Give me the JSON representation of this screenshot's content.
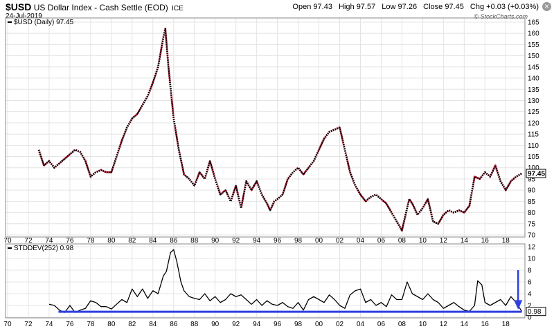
{
  "header": {
    "symbol": "$USD",
    "name": "US Dollar Index - Cash Settle (EOD)",
    "exchange": "ICE",
    "date": "24-Jul-2019",
    "credit": "© StockCharts.com",
    "quote": [
      {
        "label": "Open",
        "value": "97.43"
      },
      {
        "label": "High",
        "value": "97.57"
      },
      {
        "label": "Low",
        "value": "97.26"
      },
      {
        "label": "Close",
        "value": "97.45"
      },
      {
        "label": "Chg",
        "value": "+0.03 (+0.03%)"
      }
    ]
  },
  "chart_data": [
    {
      "type": "line",
      "legend": "$USD (Daily) 97.45",
      "last_value_label": "97.45",
      "ylim": [
        70,
        165
      ],
      "y_ticks": [
        70,
        75,
        80,
        85,
        90,
        95,
        100,
        105,
        110,
        115,
        120,
        125,
        130,
        135,
        140,
        145,
        150,
        155,
        160,
        165
      ],
      "x_ticks": [
        "70",
        "72",
        "74",
        "76",
        "78",
        "80",
        "82",
        "84",
        "86",
        "88",
        "90",
        "92",
        "94",
        "96",
        "98",
        "00",
        "02",
        "04",
        "06",
        "08",
        "10",
        "12",
        "14",
        "16",
        "18"
      ],
      "x": [
        1973.0,
        1973.5,
        1974.0,
        1974.5,
        1975.0,
        1975.5,
        1976.0,
        1976.5,
        1977.0,
        1977.5,
        1978.0,
        1978.5,
        1979.0,
        1979.5,
        1980.0,
        1980.5,
        1981.0,
        1981.5,
        1982.0,
        1982.5,
        1983.0,
        1983.5,
        1984.0,
        1984.5,
        1985.0,
        1985.2,
        1985.5,
        1986.0,
        1986.5,
        1987.0,
        1987.5,
        1988.0,
        1988.5,
        1989.0,
        1989.5,
        1990.0,
        1990.5,
        1991.0,
        1991.5,
        1992.0,
        1992.5,
        1993.0,
        1993.5,
        1994.0,
        1994.5,
        1995.0,
        1995.3,
        1995.7,
        1996.0,
        1996.5,
        1997.0,
        1997.5,
        1998.0,
        1998.5,
        1999.0,
        1999.5,
        2000.0,
        2000.5,
        2001.0,
        2001.5,
        2002.0,
        2002.5,
        2003.0,
        2003.5,
        2004.0,
        2004.5,
        2005.0,
        2005.5,
        2006.0,
        2006.5,
        2007.0,
        2007.5,
        2008.0,
        2008.3,
        2008.7,
        2009.0,
        2009.5,
        2010.0,
        2010.5,
        2011.0,
        2011.5,
        2012.0,
        2012.5,
        2013.0,
        2013.5,
        2014.0,
        2014.5,
        2015.0,
        2015.5,
        2016.0,
        2016.5,
        2017.0,
        2017.5,
        2018.0,
        2018.5,
        2019.0,
        2019.55
      ],
      "series": [
        {
          "values": [
            108,
            101,
            103,
            100,
            102,
            104,
            106,
            108,
            107,
            103,
            96,
            98,
            99,
            98,
            98,
            105,
            112,
            118,
            122,
            124,
            128,
            132,
            138,
            145,
            158,
            162,
            145,
            122,
            108,
            97,
            95,
            92,
            98,
            95,
            103,
            95,
            88,
            90,
            85,
            92,
            82,
            94,
            90,
            94,
            88,
            84,
            81,
            85,
            86,
            88,
            95,
            98,
            100,
            97,
            100,
            103,
            108,
            113,
            116,
            117,
            118,
            108,
            98,
            92,
            88,
            85,
            87,
            88,
            86,
            84,
            80,
            76,
            72,
            78,
            86,
            84,
            79,
            82,
            86,
            76,
            75,
            79,
            81,
            80,
            81,
            80,
            83,
            96,
            95,
            98,
            96,
            101,
            94,
            90,
            94,
            96,
            97.45
          ]
        }
      ]
    },
    {
      "type": "line",
      "legend": "STDDEV(252) 0.98",
      "last_value_label": "0.98",
      "ylim": [
        0,
        12
      ],
      "y_ticks": [
        0,
        2,
        4,
        6,
        8,
        10,
        12
      ],
      "x_ticks": [
        "70",
        "72",
        "74",
        "76",
        "78",
        "80",
        "82",
        "84",
        "86",
        "88",
        "90",
        "92",
        "94",
        "96",
        "98",
        "00",
        "02",
        "04",
        "06",
        "08",
        "10",
        "12",
        "14",
        "16",
        "18"
      ],
      "x": [
        1974.0,
        1974.5,
        1975.0,
        1975.5,
        1976.0,
        1976.5,
        1977.0,
        1977.5,
        1978.0,
        1978.5,
        1979.0,
        1979.5,
        1980.0,
        1980.5,
        1981.0,
        1981.5,
        1982.0,
        1982.5,
        1983.0,
        1983.5,
        1984.0,
        1984.5,
        1985.0,
        1985.3,
        1985.7,
        1986.0,
        1986.3,
        1986.7,
        1987.0,
        1987.5,
        1988.0,
        1988.5,
        1989.0,
        1989.5,
        1990.0,
        1990.5,
        1991.0,
        1991.5,
        1992.0,
        1992.5,
        1993.0,
        1993.5,
        1994.0,
        1994.5,
        1995.0,
        1995.5,
        1996.0,
        1996.5,
        1997.0,
        1997.5,
        1998.0,
        1998.5,
        1999.0,
        1999.5,
        2000.0,
        2000.5,
        2001.0,
        2001.5,
        2002.0,
        2002.5,
        2003.0,
        2003.5,
        2004.0,
        2004.5,
        2005.0,
        2005.5,
        2006.0,
        2006.5,
        2007.0,
        2007.5,
        2008.0,
        2008.5,
        2009.0,
        2009.5,
        2010.0,
        2010.5,
        2011.0,
        2011.5,
        2012.0,
        2012.5,
        2013.0,
        2013.5,
        2014.0,
        2014.5,
        2015.0,
        2015.3,
        2015.7,
        2016.0,
        2016.5,
        2017.0,
        2017.5,
        2018.0,
        2018.5,
        2019.0,
        2019.55
      ],
      "series": [
        {
          "values": [
            2.2,
            2.0,
            1.2,
            0.8,
            2.0,
            0.8,
            1.2,
            1.5,
            2.8,
            2.5,
            1.8,
            1.8,
            1.4,
            2.2,
            3.0,
            2.5,
            4.8,
            3.5,
            4.8,
            3.2,
            4.5,
            4.0,
            7.0,
            7.8,
            11.0,
            11.5,
            9.5,
            6.0,
            4.5,
            3.5,
            3.2,
            3.0,
            4.0,
            2.8,
            3.5,
            2.5,
            3.0,
            4.0,
            3.5,
            3.8,
            3.0,
            2.2,
            3.0,
            2.0,
            2.8,
            2.2,
            2.0,
            2.5,
            1.8,
            1.5,
            2.5,
            1.2,
            3.0,
            3.5,
            3.0,
            2.5,
            3.8,
            3.0,
            2.0,
            1.5,
            3.8,
            4.5,
            4.8,
            2.5,
            3.0,
            2.0,
            2.5,
            1.8,
            3.8,
            3.0,
            3.0,
            6.0,
            4.0,
            3.5,
            3.0,
            4.0,
            3.0,
            2.5,
            1.5,
            2.0,
            2.5,
            1.8,
            1.2,
            1.0,
            2.0,
            6.2,
            5.5,
            2.5,
            2.0,
            2.5,
            3.0,
            2.0,
            3.5,
            2.5,
            0.98
          ]
        }
      ]
    }
  ]
}
